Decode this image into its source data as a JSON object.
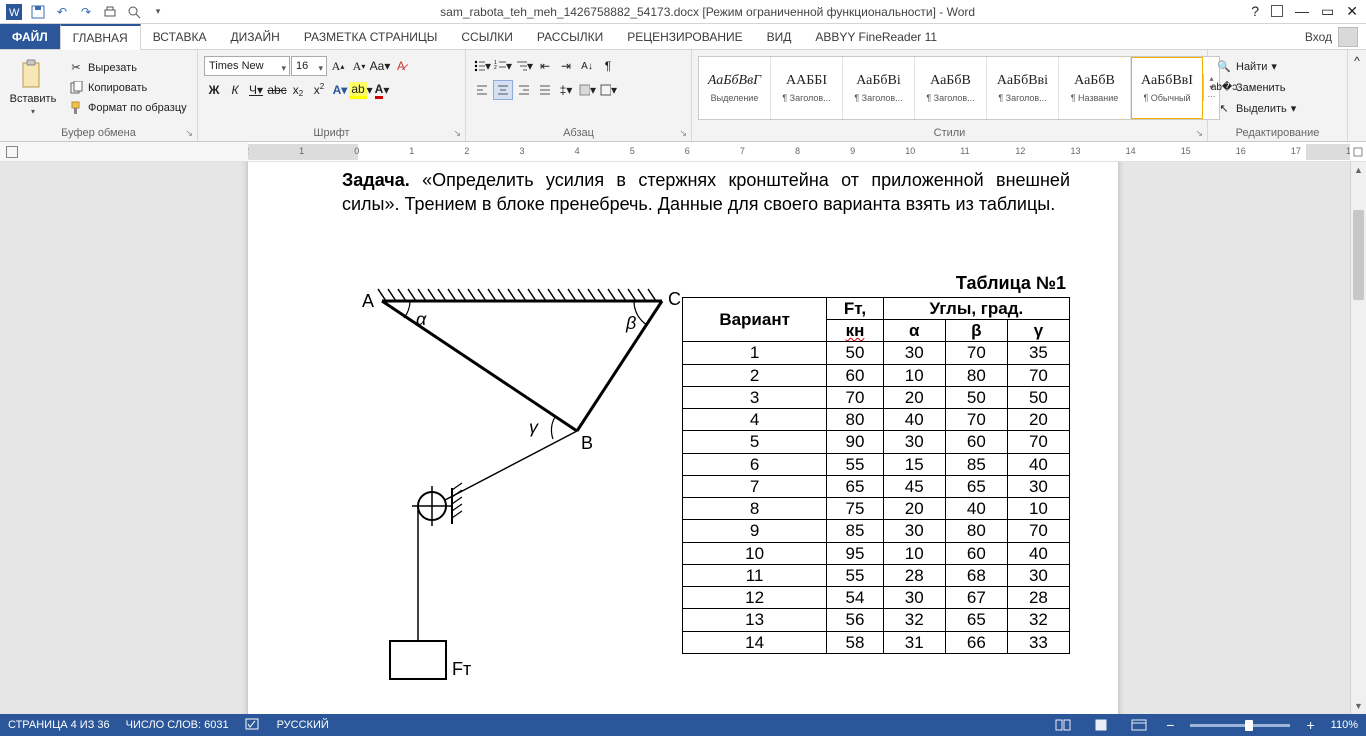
{
  "window": {
    "doc_title": "sam_rabota_teh_meh_1426758882_54173.docx [Режим ограниченной функциональности] - Word",
    "signin": "Вход"
  },
  "tabs": {
    "file": "ФАЙЛ",
    "items": [
      "ГЛАВНАЯ",
      "ВСТАВКА",
      "ДИЗАЙН",
      "РАЗМЕТКА СТРАНИЦЫ",
      "ССЫЛКИ",
      "РАССЫЛКИ",
      "РЕЦЕНЗИРОВАНИЕ",
      "ВИД",
      "ABBYY FineReader 11"
    ],
    "active_index": 0
  },
  "ribbon": {
    "clipboard": {
      "paste": "Вставить",
      "cut": "Вырезать",
      "copy": "Копировать",
      "format_painter": "Формат по образцу",
      "group_label": "Буфер обмена"
    },
    "font": {
      "name": "Times New R",
      "size": "16",
      "group_label": "Шрифт",
      "bold": "Ж",
      "italic": "К",
      "underline": "Ч",
      "strike": "abc",
      "sub": "x",
      "sub2": "2",
      "sup": "x",
      "sup2": "2"
    },
    "paragraph": {
      "group_label": "Абзац"
    },
    "styles": {
      "group_label": "Стили",
      "items": [
        {
          "sample": "АаБбВвГ",
          "name": "Выделение",
          "italic": true
        },
        {
          "sample": "ААББІ",
          "name": "¶ Заголов..."
        },
        {
          "sample": "АаБбВі",
          "name": "¶ Заголов..."
        },
        {
          "sample": "АаБбВ",
          "name": "¶ Заголов..."
        },
        {
          "sample": "АаБбВві",
          "name": "¶ Заголов..."
        },
        {
          "sample": "АаБбВ",
          "name": "¶ Название"
        },
        {
          "sample": "АаБбВвІ",
          "name": "¶ Обычный",
          "selected": true
        }
      ]
    },
    "editing": {
      "find": "Найти",
      "replace": "Заменить",
      "select": "Выделить",
      "group_label": "Редактирование"
    }
  },
  "ruler": {
    "min": -2,
    "max": 18,
    "dark_left_end": 0,
    "dark_right_start": 17.2
  },
  "document": {
    "problem_label": "Задача.",
    "problem_text_1": "«Определить усилия в стержнях кронштейна от приложенной внешней силы». Трением в блоке пренебречь. Данные для своего варианта взять из таблицы.",
    "table_title": "Таблица №1",
    "table_headers": {
      "variant": "Вариант",
      "ft": "Fт,",
      "ft_unit": "кн",
      "angles": "Углы, град.",
      "alpha": "α",
      "beta": "β",
      "gamma": "γ"
    },
    "rows": [
      [
        1,
        50,
        30,
        70,
        35
      ],
      [
        2,
        60,
        10,
        80,
        70
      ],
      [
        3,
        70,
        20,
        50,
        50
      ],
      [
        4,
        80,
        40,
        70,
        20
      ],
      [
        5,
        90,
        30,
        60,
        70
      ],
      [
        6,
        55,
        15,
        85,
        40
      ],
      [
        7,
        65,
        45,
        65,
        30
      ],
      [
        8,
        75,
        20,
        40,
        10
      ],
      [
        9,
        85,
        30,
        80,
        70
      ],
      [
        10,
        95,
        10,
        60,
        40
      ],
      [
        11,
        55,
        28,
        68,
        30
      ],
      [
        12,
        54,
        30,
        67,
        28
      ],
      [
        13,
        56,
        32,
        65,
        32
      ],
      [
        14,
        58,
        31,
        66,
        33
      ]
    ],
    "diagram": {
      "labels": {
        "A": "A",
        "B": "B",
        "C": "C",
        "alpha": "α",
        "beta": "β",
        "gamma": "γ",
        "Ft": "Fт"
      },
      "colors": {
        "stroke": "#000000",
        "hatch": "#000000"
      }
    }
  },
  "statusbar": {
    "page": "СТРАНИЦА 4 ИЗ 36",
    "words": "ЧИСЛО СЛОВ: 6031",
    "lang": "РУССКИЙ",
    "zoom": "110%",
    "zoom_value": 110
  }
}
